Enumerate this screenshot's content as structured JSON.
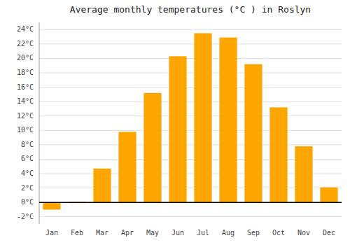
{
  "chart_data": {
    "type": "bar",
    "title": "Average monthly temperatures (°C ) in Roslyn",
    "categories": [
      "Jan",
      "Feb",
      "Mar",
      "Apr",
      "May",
      "Jun",
      "Jul",
      "Aug",
      "Sep",
      "Oct",
      "Nov",
      "Dec"
    ],
    "values": [
      -1.0,
      0.1,
      4.7,
      9.8,
      15.2,
      20.3,
      23.5,
      22.9,
      19.2,
      13.2,
      7.8,
      2.1
    ],
    "color": "#FFA500",
    "ylim": [
      -3,
      25
    ],
    "yticks": [
      {
        "value": -2,
        "label": "-2°C"
      },
      {
        "value": 0,
        "label": "0°C"
      },
      {
        "value": 2,
        "label": "2°C"
      },
      {
        "value": 4,
        "label": "4°C"
      },
      {
        "value": 6,
        "label": "6°C"
      },
      {
        "value": 8,
        "label": "8°C"
      },
      {
        "value": 10,
        "label": "10°C"
      },
      {
        "value": 12,
        "label": "12°C"
      },
      {
        "value": 14,
        "label": "14°C"
      },
      {
        "value": 16,
        "label": "16°C"
      },
      {
        "value": 18,
        "label": "18°C"
      },
      {
        "value": 20,
        "label": "20°C"
      },
      {
        "value": 22,
        "label": "22°C"
      },
      {
        "value": 24,
        "label": "24°C"
      }
    ],
    "grid": true
  }
}
